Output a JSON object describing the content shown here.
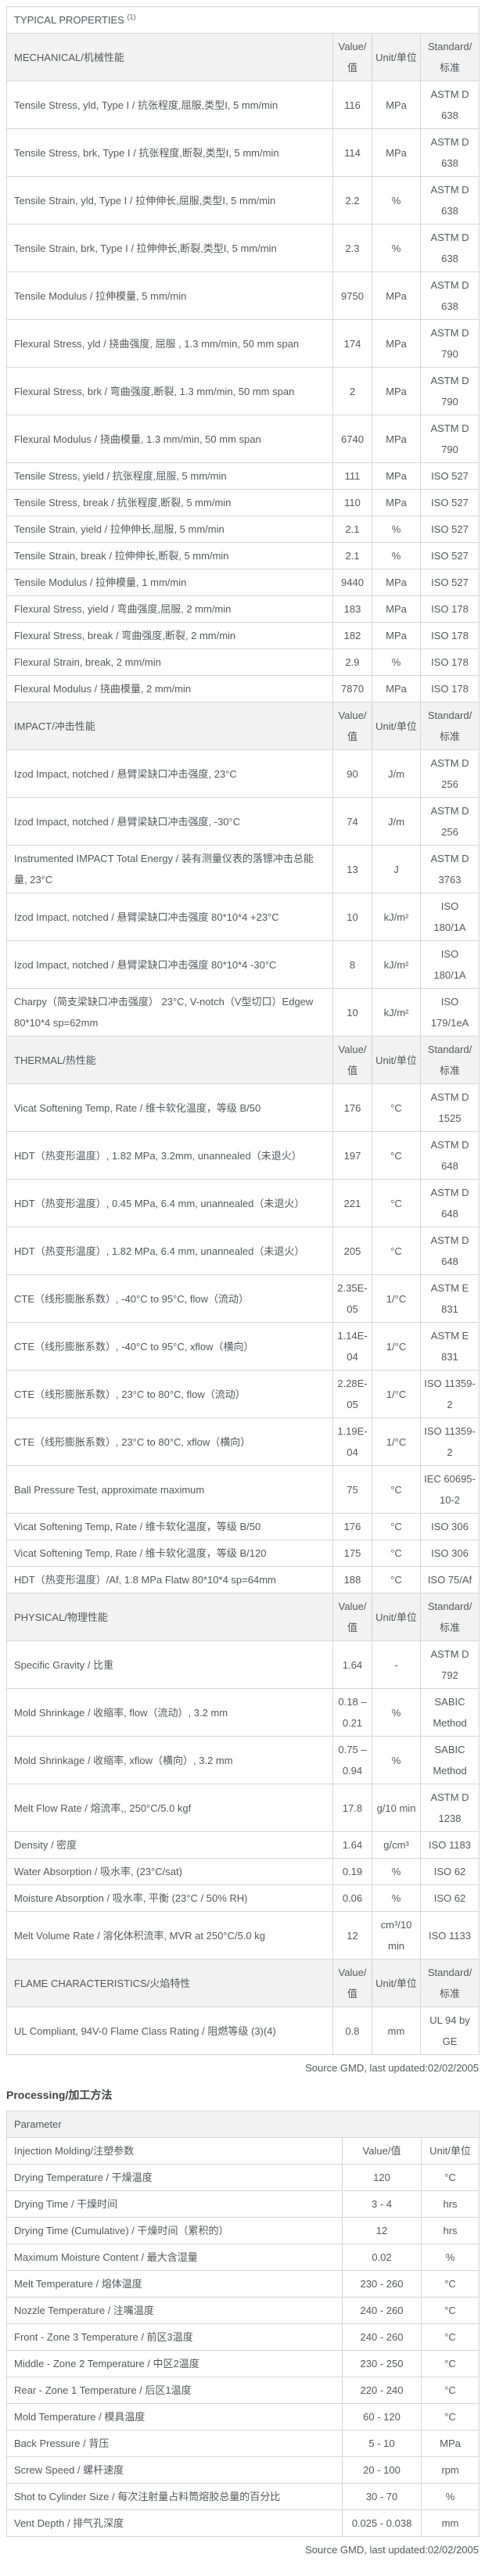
{
  "page": {
    "typical_properties_title": "TYPICAL PROPERTIES",
    "typical_properties_superscript": "(1)",
    "source_note": "Source GMD, last updated:02/02/2005",
    "processing_title": "Processing/加工方法"
  },
  "properties_table": {
    "column_headers": {
      "value": "Value/值",
      "unit": "Unit/单位",
      "standard": "Standard/标准"
    },
    "sections": [
      {
        "name": "MECHANICAL/机械性能",
        "rows": [
          {
            "property": "Tensile Stress, yld, Type I / 抗张程度,屈服,类型I, 5 mm/min",
            "value": "116",
            "unit": "MPa",
            "standard": "ASTM D 638"
          },
          {
            "property": "Tensile Stress, brk, Type I / 抗张程度,断裂,类型I, 5 mm/min",
            "value": "114",
            "unit": "MPa",
            "standard": "ASTM D 638"
          },
          {
            "property": "Tensile Strain, yld, Type I / 拉伸伸长,屈服,类型I, 5 mm/min",
            "value": "2.2",
            "unit": "%",
            "standard": "ASTM D 638"
          },
          {
            "property": "Tensile Strain, brk, Type I / 拉伸伸长,断裂,类型I, 5 mm/min",
            "value": "2.3",
            "unit": "%",
            "standard": "ASTM D 638"
          },
          {
            "property": "Tensile Modulus / 拉伸模量, 5 mm/min",
            "value": "9750",
            "unit": "MPa",
            "standard": "ASTM D 638"
          },
          {
            "property": "Flexural Stress, yld / 挠曲强度, 屈服 , 1.3 mm/min, 50 mm span",
            "value": "174",
            "unit": "MPa",
            "standard": "ASTM D 790"
          },
          {
            "property": "Flexural Stress, brk / 弯曲强度,断裂, 1.3 mm/min, 50 mm span",
            "value": "2",
            "unit": "MPa",
            "standard": "ASTM D 790"
          },
          {
            "property": "Flexural Modulus / 挠曲模量, 1.3 mm/min, 50 mm span",
            "value": "6740",
            "unit": "MPa",
            "standard": "ASTM D 790"
          },
          {
            "property": "Tensile Stress, yield / 抗张程度,屈服, 5 mm/min",
            "value": "111",
            "unit": "MPa",
            "standard": "ISO 527"
          },
          {
            "property": "Tensile Stress, break / 抗张程度,断裂, 5 mm/min",
            "value": "110",
            "unit": "MPa",
            "standard": "ISO 527"
          },
          {
            "property": "Tensile Strain, yield / 拉伸伸长,屈服, 5 mm/min",
            "value": "2.1",
            "unit": "%",
            "standard": "ISO 527"
          },
          {
            "property": "Tensile Strain, break / 拉伸伸长,断裂, 5 mm/min",
            "value": "2.1",
            "unit": "%",
            "standard": "ISO 527"
          },
          {
            "property": "Tensile Modulus / 拉伸模量, 1 mm/min",
            "value": "9440",
            "unit": "MPa",
            "standard": "ISO 527"
          },
          {
            "property": "Flexural Stress, yield / 弯曲强度,屈服, 2 mm/min",
            "value": "183",
            "unit": "MPa",
            "standard": "ISO 178"
          },
          {
            "property": "Flexural Stress, break / 弯曲强度,断裂, 2 mm/min",
            "value": "182",
            "unit": "MPa",
            "standard": "ISO 178"
          },
          {
            "property": "Flexural Strain, break, 2 mm/min",
            "value": "2.9",
            "unit": "%",
            "standard": "ISO 178"
          },
          {
            "property": "Flexural Modulus / 挠曲模量, 2 mm/min",
            "value": "7870",
            "unit": "MPa",
            "standard": "ISO 178"
          }
        ]
      },
      {
        "name": "IMPACT/冲击性能",
        "rows": [
          {
            "property": "Izod Impact, notched / 悬臂梁缺口冲击强度, 23°C",
            "value": "90",
            "unit": "J/m",
            "standard": "ASTM D 256"
          },
          {
            "property": "Izod Impact, notched / 悬臂梁缺口冲击强度, -30°C",
            "value": "74",
            "unit": "J/m",
            "standard": "ASTM D 256"
          },
          {
            "property": "Instrumented IMPACT Total Energy / 装有测量仪表的落镖冲击总能量, 23°C",
            "value": "13",
            "unit": "J",
            "standard": "ASTM D 3763"
          },
          {
            "property": "Izod Impact, notched / 悬臂梁缺口冲击强度 80*10*4 +23°C",
            "value": "10",
            "unit": "kJ/m²",
            "standard": "ISO 180/1A"
          },
          {
            "property": "Izod Impact, notched / 悬臂梁缺口冲击强度 80*10*4 -30°C",
            "value": "8",
            "unit": "kJ/m²",
            "standard": "ISO 180/1A"
          },
          {
            "property": "Charpy（简支梁缺口冲击强度） 23°C, V-notch（V型切口）Edgew 80*10*4 sp=62mm",
            "value": "10",
            "unit": "kJ/m²",
            "standard": "ISO 179/1eA"
          }
        ]
      },
      {
        "name": "THERMAL/热性能",
        "rows": [
          {
            "property": "Vicat Softening Temp, Rate / 维卡软化温度，等级 B/50",
            "value": "176",
            "unit": "°C",
            "standard": "ASTM D 1525"
          },
          {
            "property": "HDT（热变形温度）, 1.82 MPa, 3.2mm, unannealed（未退火）",
            "value": "197",
            "unit": "°C",
            "standard": "ASTM D 648"
          },
          {
            "property": "HDT（热变形温度）, 0.45 MPa, 6.4 mm, unannealed（未退火）",
            "value": "221",
            "unit": "°C",
            "standard": "ASTM D 648"
          },
          {
            "property": "HDT（热变形温度）, 1.82 MPa, 6.4 mm, unannealed（未退火）",
            "value": "205",
            "unit": "°C",
            "standard": "ASTM D 648"
          },
          {
            "property": "CTE（线形膨胀系数）, -40°C to 95°C, flow（流动）",
            "value": "2.35E-05",
            "unit": "1/°C",
            "standard": "ASTM E 831"
          },
          {
            "property": "CTE（线形膨胀系数）, -40°C to 95°C, xflow（横向）",
            "value": "1.14E-04",
            "unit": "1/°C",
            "standard": "ASTM E 831"
          },
          {
            "property": "CTE（线形膨胀系数）, 23°C to 80°C, flow（流动）",
            "value": "2.28E-05",
            "unit": "1/°C",
            "standard": "ISO 11359-2"
          },
          {
            "property": "CTE（线形膨胀系数）, 23°C to 80°C, xflow（横向）",
            "value": "1.19E-04",
            "unit": "1/°C",
            "standard": "ISO 11359-2"
          },
          {
            "property": "Ball Pressure Test, approximate maximum",
            "value": "75",
            "unit": "°C",
            "standard": "IEC 60695-10-2"
          },
          {
            "property": "Vicat Softening Temp, Rate / 维卡软化温度，等级 B/50",
            "value": "176",
            "unit": "°C",
            "standard": "ISO 306"
          },
          {
            "property": "Vicat Softening Temp, Rate / 维卡软化温度，等级 B/120",
            "value": "175",
            "unit": "°C",
            "standard": "ISO 306"
          },
          {
            "property": "HDT（热变形温度）/Af, 1.8 MPa Flatw 80*10*4 sp=64mm",
            "value": "188",
            "unit": "°C",
            "standard": "ISO 75/Af"
          }
        ]
      },
      {
        "name": "PHYSICAL/物理性能",
        "rows": [
          {
            "property": "Specific Gravity / 比重",
            "value": "1.64",
            "unit": "-",
            "standard": "ASTM D 792"
          },
          {
            "property": "Mold Shrinkage / 收缩率, flow（流动）, 3.2 mm",
            "value": "0.18 – 0.21",
            "unit": "%",
            "standard": "SABIC Method"
          },
          {
            "property": "Mold Shrinkage / 收缩率, xflow（横向）, 3.2 mm",
            "value": "0.75 – 0.94",
            "unit": "%",
            "standard": "SABIC Method"
          },
          {
            "property": "Melt Flow Rate / 熔流率,, 250°C/5.0 kgf",
            "value": "17.8",
            "unit": "g/10 min",
            "standard": "ASTM D 1238"
          },
          {
            "property": "Density / 密度",
            "value": "1.64",
            "unit": "g/cm³",
            "standard": "ISO 1183"
          },
          {
            "property": "Water Absorption / 吸水率, (23°C/sat)",
            "value": "0.19",
            "unit": "%",
            "standard": "ISO 62"
          },
          {
            "property": "Moisture Absorption / 吸水率, 平衡 (23°C / 50% RH)",
            "value": "0.06",
            "unit": "%",
            "standard": "ISO 62"
          },
          {
            "property": "Melt Volume Rate / 溶化体积流率, MVR at 250°C/5.0 kg",
            "value": "12",
            "unit": "cm³/10 min",
            "standard": "ISO 1133"
          }
        ]
      },
      {
        "name": "FLAME CHARACTERISTICS/火焰特性",
        "rows": [
          {
            "property": "UL Compliant, 94V-0 Flame Class Rating / 阻燃等级 (3)(4)",
            "value": "0.8",
            "unit": "mm",
            "standard": "UL 94 by GE"
          }
        ]
      }
    ]
  },
  "processing_table": {
    "parameter_header": "Parameter",
    "group_header": "Injection Molding/注塑参数",
    "column_headers": {
      "value": "Value/值",
      "unit": "Unit/单位"
    },
    "rows": [
      {
        "parameter": "Drying Temperature / 干燥温度",
        "value": "120",
        "unit": "°C"
      },
      {
        "parameter": "Drying Time / 干燥时间",
        "value": "3 - 4",
        "unit": "hrs"
      },
      {
        "parameter": "Drying Time (Cumulative) / 干燥时间（累积的）",
        "value": "12",
        "unit": "hrs"
      },
      {
        "parameter": "Maximum Moisture Content / 最大含湿量",
        "value": "0.02",
        "unit": "%"
      },
      {
        "parameter": "Melt Temperature / 熔体温度",
        "value": "230 - 260",
        "unit": "°C"
      },
      {
        "parameter": "Nozzle Temperature / 注嘴温度",
        "value": "240 - 260",
        "unit": "°C"
      },
      {
        "parameter": "Front - Zone 3 Temperature / 前区3温度",
        "value": "240 - 260",
        "unit": "°C"
      },
      {
        "parameter": "Middle - Zone 2 Temperature / 中区2温度",
        "value": "230 - 250",
        "unit": "°C"
      },
      {
        "parameter": "Rear - Zone 1 Temperature / 后区1温度",
        "value": "220 - 240",
        "unit": "°C"
      },
      {
        "parameter": "Mold Temperature / 模具温度",
        "value": "60 - 120",
        "unit": "°C"
      },
      {
        "parameter": "Back Pressure / 背压",
        "value": "5 - 10",
        "unit": "MPa"
      },
      {
        "parameter": "Screw Speed / 螺杆速度",
        "value": "20 - 100",
        "unit": "rpm"
      },
      {
        "parameter": "Shot to Cylinder Size / 每次注射量占料筒熔胶总量的百分比",
        "value": "30 - 70",
        "unit": "%"
      },
      {
        "parameter": "Vent Depth / 排气孔深度",
        "value": "0.025 - 0.038",
        "unit": "mm"
      }
    ]
  }
}
